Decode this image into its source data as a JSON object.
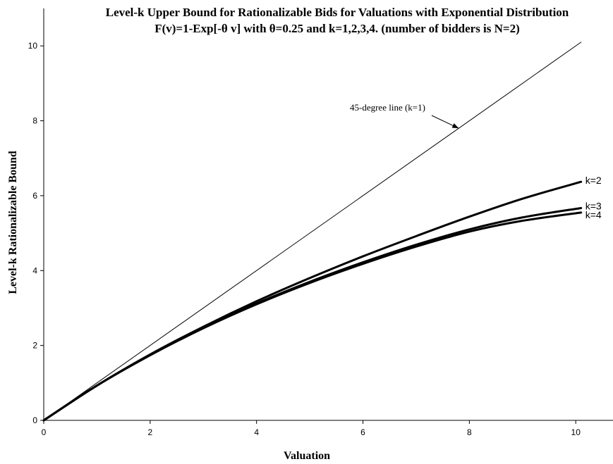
{
  "chart_data": {
    "type": "line",
    "title_lines": [
      "Level-k Upper Bound for Rationalizable Bids for Valuations with Exponential Distribution",
      "F(v)=1-Exp[-θ v] with θ=0.25 and k=1,2,3,4. (number of bidders is N=2)"
    ],
    "xlabel": "Valuation",
    "ylabel": "Level-k Rationalizable Bound",
    "xlim": [
      0,
      10.7
    ],
    "ylim": [
      0,
      11
    ],
    "xticks": [
      0,
      2,
      4,
      6,
      8,
      10
    ],
    "yticks": [
      0,
      2,
      4,
      6,
      8,
      10
    ],
    "xtick_labels": [
      "0",
      "2",
      "4",
      "6",
      "8",
      "10"
    ],
    "ytick_labels": [
      "0",
      "2",
      "4",
      "6",
      "8",
      "10"
    ],
    "grid": false,
    "annotation": {
      "text": "45-degree line (k=1)",
      "points_to": {
        "x": 7.8,
        "y": 7.8
      }
    },
    "series": [
      {
        "name": "45-degree line (k=1)",
        "x": [
          0,
          10.1
        ],
        "y": [
          0,
          10.1
        ]
      },
      {
        "name": "k=2",
        "x": [
          0,
          1,
          2,
          3,
          4,
          5,
          6,
          7,
          8,
          9,
          10.1
        ],
        "y": [
          0,
          0.93,
          1.76,
          2.5,
          3.18,
          3.8,
          4.38,
          4.92,
          5.44,
          5.92,
          6.37
        ]
      },
      {
        "name": "k=3",
        "x": [
          0,
          1,
          2,
          3,
          4,
          5,
          6,
          7,
          8,
          9,
          10.1
        ],
        "y": [
          0,
          0.93,
          1.74,
          2.47,
          3.12,
          3.7,
          4.22,
          4.69,
          5.1,
          5.42,
          5.67
        ]
      },
      {
        "name": "k=4",
        "x": [
          0,
          1,
          2,
          3,
          4,
          5,
          6,
          7,
          8,
          9,
          10.1
        ],
        "y": [
          0,
          0.93,
          1.74,
          2.46,
          3.1,
          3.67,
          4.18,
          4.64,
          5.04,
          5.33,
          5.55
        ]
      }
    ]
  }
}
